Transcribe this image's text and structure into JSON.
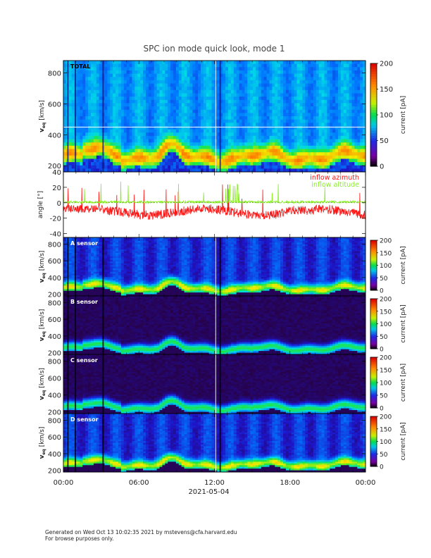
{
  "title": "SPC ion mode quick look, mode 1",
  "colors": {
    "azimuth": "#ff1414",
    "altitude": "#88ee22"
  },
  "footer": {
    "line1": "Generated on Wed Oct 13 10:02:35 2021 by mstevens@cfa.harvard.edu",
    "line2": "For browse purposes only."
  },
  "chart_data": [
    {
      "type": "heatmap",
      "panel_label": "TOTAL",
      "ylabel_main": "v",
      "ylabel_sub": "eq",
      "ylabel_unit": "[km/s]",
      "ylim": [
        160,
        880
      ],
      "yticks": [
        200,
        400,
        600,
        800
      ],
      "colorbar": {
        "label": "current [pA]",
        "range": [
          0,
          200
        ],
        "ticks": [
          0,
          50,
          100,
          150,
          200
        ]
      },
      "ridge_v": 260,
      "background": "blue",
      "white_lines_v": [
        450
      ]
    },
    {
      "type": "line",
      "ylabel": "angle [°]",
      "ylim": [
        -45,
        40
      ],
      "yticks": [
        -40,
        -20,
        0,
        20,
        40
      ],
      "series": [
        {
          "name": "inflow azimuth",
          "color": "#ff1414",
          "mean": -12
        },
        {
          "name": "inflow altitude",
          "color": "#88ee22",
          "mean": 1
        }
      ]
    },
    {
      "type": "heatmap",
      "panel_label": "A sensor",
      "ylabel_main": "v",
      "ylabel_sub": "eq",
      "ylabel_unit": "[km/s]",
      "ylim": [
        180,
        880
      ],
      "yticks": [
        200,
        400,
        600,
        800
      ],
      "colorbar": {
        "label": "current [pA]",
        "range": [
          0,
          200
        ],
        "ticks": [
          0,
          50,
          100,
          150,
          200
        ]
      },
      "ridge_v": 270,
      "background": "navy"
    },
    {
      "type": "heatmap",
      "panel_label": "B sensor",
      "ylabel_main": "v",
      "ylabel_sub": "eq",
      "ylabel_unit": "[km/s]",
      "ylim": [
        180,
        880
      ],
      "yticks": [
        200,
        400,
        600,
        800
      ],
      "colorbar": {
        "label": "current [pA]",
        "range": [
          0,
          200
        ],
        "ticks": [
          0,
          50,
          100,
          150,
          200
        ]
      },
      "ridge_v": 250,
      "background": "dark"
    },
    {
      "type": "heatmap",
      "panel_label": "C sensor",
      "ylabel_main": "v",
      "ylabel_sub": "eq",
      "ylabel_unit": "[km/s]",
      "ylim": [
        180,
        880
      ],
      "yticks": [
        200,
        400,
        600,
        800
      ],
      "colorbar": {
        "label": "current [pA]",
        "range": [
          0,
          200
        ],
        "ticks": [
          0,
          50,
          100,
          150,
          200
        ]
      },
      "ridge_v": 250,
      "background": "dark"
    },
    {
      "type": "heatmap",
      "panel_label": "D sensor",
      "ylabel_main": "v",
      "ylabel_sub": "eq",
      "ylabel_unit": "[km/s]",
      "ylim": [
        180,
        880
      ],
      "yticks": [
        200,
        400,
        600,
        800
      ],
      "colorbar": {
        "label": "current [pA]",
        "range": [
          0,
          200
        ],
        "ticks": [
          0,
          50,
          100,
          150,
          200
        ]
      },
      "ridge_v": 270,
      "background": "navy"
    }
  ],
  "x_axis": {
    "ticks": [
      "00:00",
      "06:00",
      "12:00",
      "18:00",
      "00:00"
    ],
    "date": "2021-05-04"
  }
}
